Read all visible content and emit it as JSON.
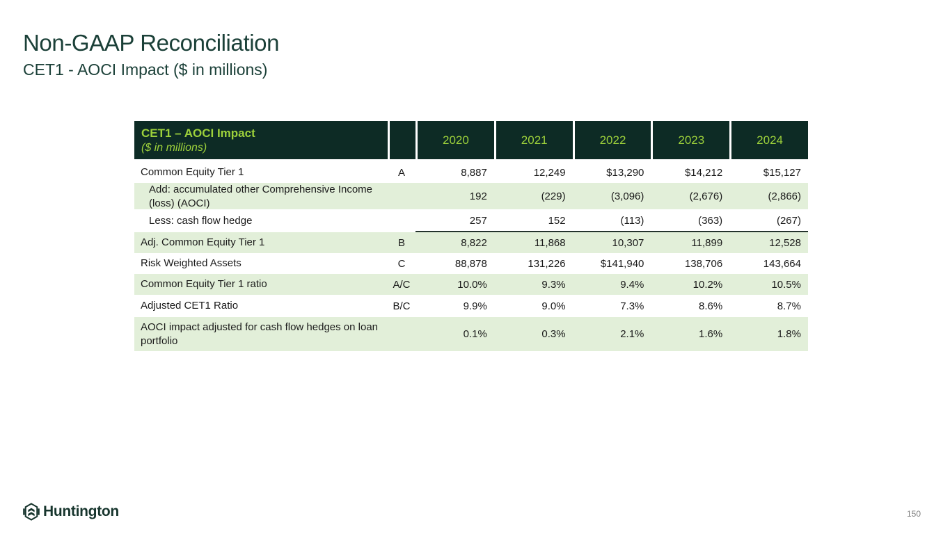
{
  "slide": {
    "title": "Non-GAAP Reconciliation",
    "subtitle": "CET1 - AOCI Impact ($ in millions)",
    "page_number": "150",
    "logo_text": "Huntington"
  },
  "colors": {
    "header_dark_green": "#0d2b25",
    "accent_lime_green": "#9dd13b",
    "shaded_row_green": "#e2efd9",
    "title_dark_green": "#1b4038",
    "body_text": "#1a1a1a",
    "page_number_gray": "#7f7f7f"
  },
  "table": {
    "header": {
      "title": "CET1 – AOCI Impact",
      "subtitle": "($ in millions)",
      "years": [
        "2020",
        "2021",
        "2022",
        "2023",
        "2024"
      ]
    },
    "rows": [
      {
        "label": "Common Equity Tier 1",
        "ref": "A",
        "indent": false,
        "shaded": false,
        "sum_line": false,
        "values": [
          "8,887",
          "12,249",
          "$13,290",
          "$14,212",
          "$15,127"
        ]
      },
      {
        "label": "Add: accumulated other Comprehensive Income (loss) (AOCI)",
        "ref": "",
        "indent": true,
        "shaded": true,
        "sum_line": false,
        "values": [
          "192",
          "(229)",
          "(3,096)",
          "(2,676)",
          "(2,866)"
        ]
      },
      {
        "label": "Less: cash flow hedge",
        "ref": "",
        "indent": true,
        "shaded": false,
        "sum_line": true,
        "values": [
          "257",
          "152",
          "(113)",
          "(363)",
          "(267)"
        ]
      },
      {
        "label": "Adj. Common Equity Tier 1",
        "ref": "B",
        "indent": false,
        "shaded": true,
        "sum_line": false,
        "values": [
          "8,822",
          "11,868",
          "10,307",
          "11,899",
          "12,528"
        ]
      },
      {
        "label": "Risk Weighted Assets",
        "ref": "C",
        "indent": false,
        "shaded": false,
        "sum_line": false,
        "values": [
          "88,878",
          "131,226",
          "$141,940",
          "138,706",
          "143,664"
        ]
      },
      {
        "label": "Common Equity Tier 1 ratio",
        "ref": "A/C",
        "indent": false,
        "shaded": true,
        "sum_line": false,
        "values": [
          "10.0%",
          "9.3%",
          "9.4%",
          "10.2%",
          "10.5%"
        ]
      },
      {
        "label": "Adjusted CET1 Ratio",
        "ref": "B/C",
        "indent": false,
        "shaded": false,
        "sum_line": false,
        "values": [
          "9.9%",
          "9.0%",
          "7.3%",
          "8.6%",
          "8.7%"
        ]
      },
      {
        "label": "AOCI impact adjusted for cash flow hedges on loan portfolio",
        "ref": "",
        "indent": false,
        "shaded": true,
        "sum_line": false,
        "values": [
          "0.1%",
          "0.3%",
          "2.1%",
          "1.6%",
          "1.8%"
        ]
      }
    ]
  }
}
